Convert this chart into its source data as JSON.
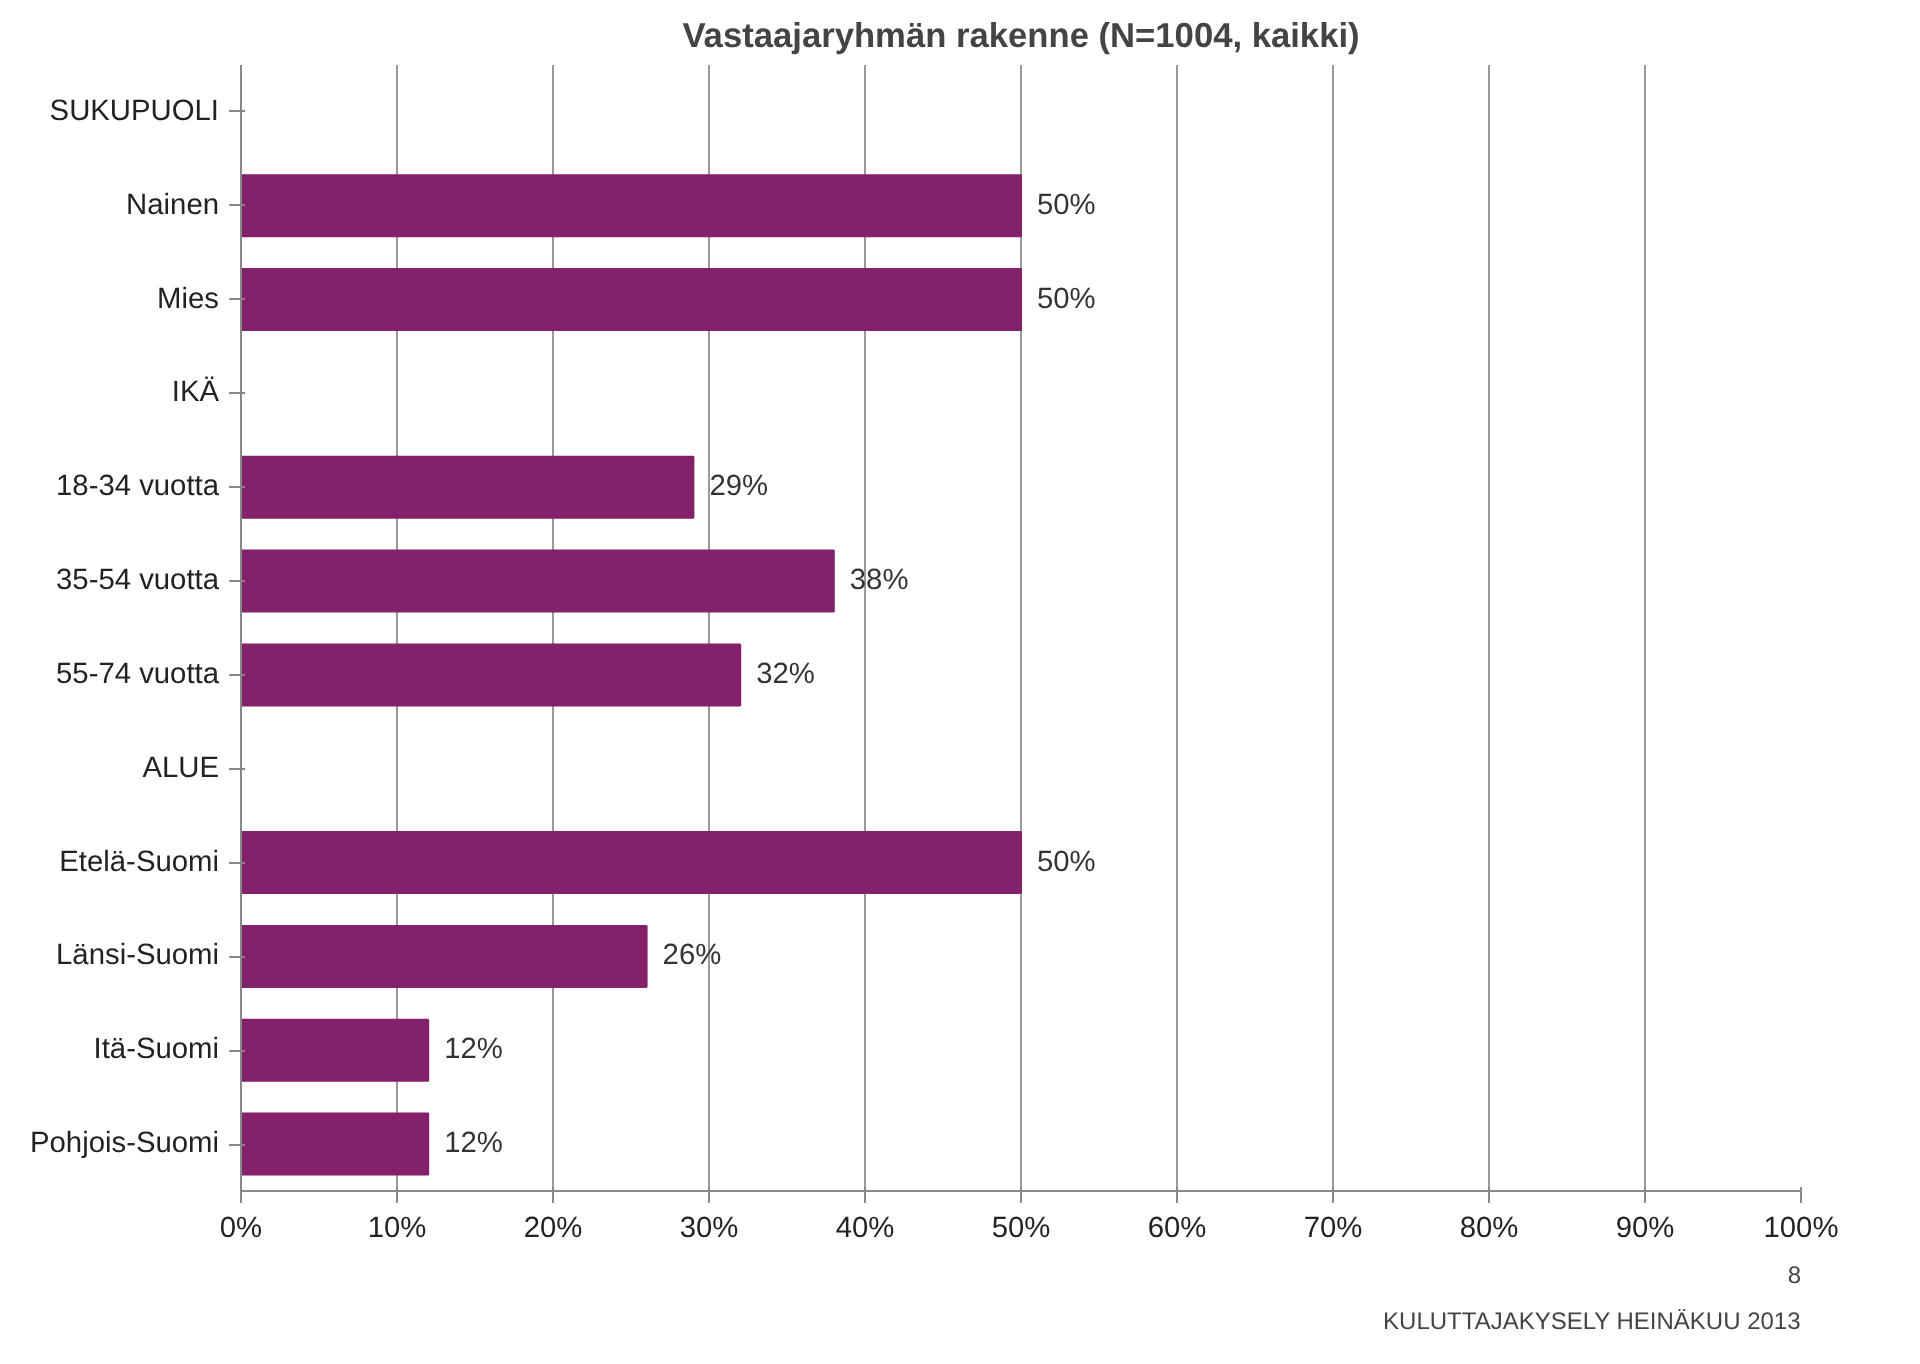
{
  "chart_data": {
    "type": "bar",
    "orientation": "horizontal",
    "title": "Vastaajaryhmän rakenne (N=1004, kaikki)",
    "categories": [
      "SUKUPUOLI",
      "Nainen",
      "Mies",
      "IKÄ",
      "18-34 vuotta",
      "35-54 vuotta",
      "55-74 vuotta",
      "ALUE",
      "Etelä-Suomi",
      "Länsi-Suomi",
      "Itä-Suomi",
      "Pohjois-Suomi"
    ],
    "values": [
      null,
      50,
      50,
      null,
      29,
      38,
      32,
      null,
      50,
      26,
      12,
      12
    ],
    "value_labels": [
      null,
      "50%",
      "50%",
      null,
      "29%",
      "38%",
      "32%",
      null,
      "50%",
      "26%",
      "12%",
      "12%"
    ],
    "color": "#84216b",
    "xlim": [
      0,
      100
    ],
    "xticks": [
      {
        "value": 0,
        "label": "0%"
      },
      {
        "value": 10,
        "label": "10%"
      },
      {
        "value": 20,
        "label": "20%"
      },
      {
        "value": 30,
        "label": "30%"
      },
      {
        "value": 40,
        "label": "40%"
      },
      {
        "value": 50,
        "label": "50%"
      },
      {
        "value": 60,
        "label": "60%"
      },
      {
        "value": 70,
        "label": "70%"
      },
      {
        "value": 80,
        "label": "80%"
      },
      {
        "value": 90,
        "label": "90%"
      },
      {
        "value": 100,
        "label": "100%"
      }
    ],
    "grid": "x",
    "annotations": [
      "8",
      "KULUTTAJAKYSELY HEINÄKUU 2013"
    ]
  }
}
